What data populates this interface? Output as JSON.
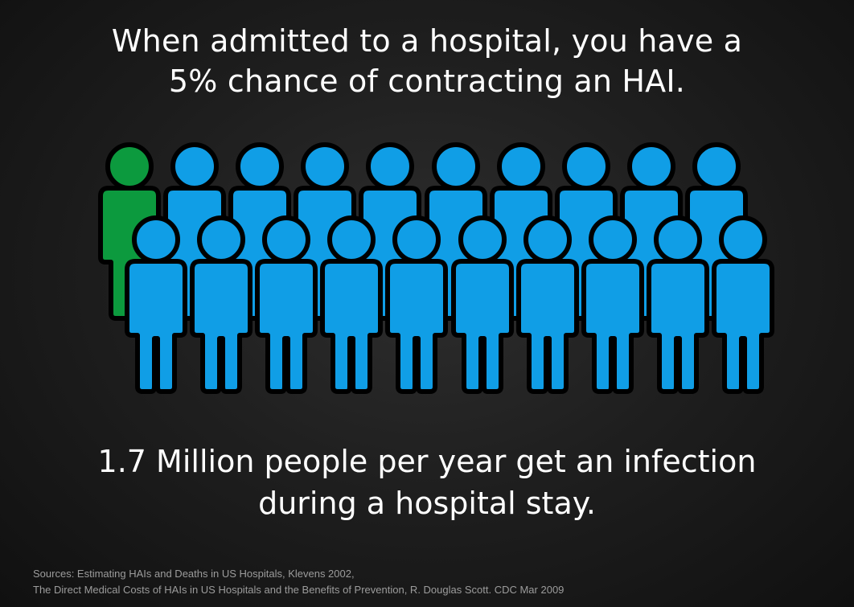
{
  "headline": {
    "line1": "When admitted to a hospital, you have a",
    "line2": "5% chance of contracting an HAI."
  },
  "stat": {
    "line1": "1.7 Million people per year get an infection",
    "line2": "during a hospital stay."
  },
  "sources": {
    "line1": "Sources: Estimating HAIs and Deaths in US Hospitals, Klevens 2002,",
    "line2": "The Direct Medical Costs of HAIs in US Hospitals and the Benefits of Prevention, R. Douglas Scott. CDC Mar 2009"
  },
  "people": {
    "total": 20,
    "infected": 1,
    "colors": {
      "infected": "#0c9a3e",
      "healthy": "#109ee6",
      "outline": "#000000"
    }
  }
}
